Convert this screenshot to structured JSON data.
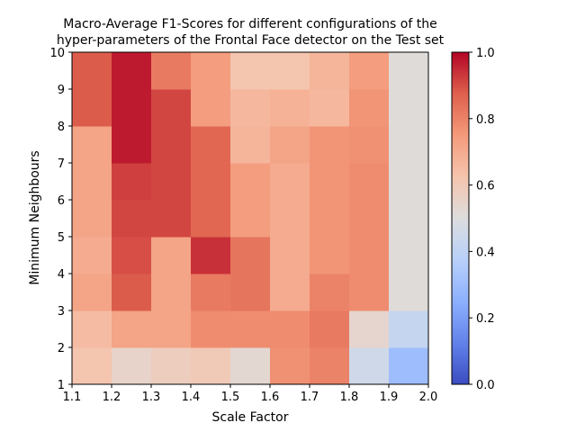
{
  "chart_data": {
    "type": "heatmap",
    "title": [
      "Macro-Average F1-Scores for different configurations of the",
      "hyper-parameters of the Frontal Face detector on the Test set"
    ],
    "xlabel": "Scale Factor",
    "ylabel": "Minimum Neighbours",
    "x_ticks": [
      "1.1",
      "1.2",
      "1.3",
      "1.4",
      "1.5",
      "1.6",
      "1.7",
      "1.8",
      "1.9",
      "2.0"
    ],
    "y_ticks": [
      "1",
      "2",
      "3",
      "4",
      "5",
      "6",
      "7",
      "8",
      "9",
      "10"
    ],
    "xlim": [
      1.1,
      2.0
    ],
    "ylim": [
      1,
      10
    ],
    "colormap": "coolwarm",
    "colorbar": {
      "min": 0.0,
      "max": 1.0,
      "ticks": [
        "0.0",
        "0.2",
        "0.4",
        "0.6",
        "0.8",
        "1.0"
      ]
    },
    "x_bins": [
      [
        1.1,
        1.2
      ],
      [
        1.2,
        1.3
      ],
      [
        1.3,
        1.4
      ],
      [
        1.4,
        1.5
      ],
      [
        1.5,
        1.6
      ],
      [
        1.6,
        1.7
      ],
      [
        1.7,
        1.8
      ],
      [
        1.8,
        1.9
      ],
      [
        1.9,
        2.0
      ]
    ],
    "y_bins": [
      [
        1,
        2
      ],
      [
        2,
        3
      ],
      [
        3,
        4
      ],
      [
        4,
        5
      ],
      [
        5,
        6
      ],
      [
        6,
        7
      ],
      [
        7,
        8
      ],
      [
        8,
        9
      ],
      [
        9,
        10
      ]
    ],
    "values": [
      [
        0.62,
        0.55,
        0.58,
        0.6,
        0.53,
        0.77,
        0.8,
        0.45,
        0.3
      ],
      [
        0.65,
        0.72,
        0.72,
        0.78,
        0.78,
        0.78,
        0.82,
        0.54,
        0.42
      ],
      [
        0.72,
        0.88,
        0.72,
        0.82,
        0.83,
        0.7,
        0.8,
        0.78,
        0.51
      ],
      [
        0.7,
        0.9,
        0.72,
        0.94,
        0.83,
        0.7,
        0.76,
        0.78,
        0.51
      ],
      [
        0.72,
        0.91,
        0.91,
        0.86,
        0.74,
        0.7,
        0.76,
        0.78,
        0.51
      ],
      [
        0.72,
        0.92,
        0.91,
        0.86,
        0.74,
        0.7,
        0.76,
        0.78,
        0.51
      ],
      [
        0.72,
        0.97,
        0.91,
        0.86,
        0.67,
        0.72,
        0.76,
        0.77,
        0.51
      ],
      [
        0.88,
        0.97,
        0.91,
        0.74,
        0.66,
        0.68,
        0.66,
        0.76,
        0.51
      ],
      [
        0.88,
        0.97,
        0.82,
        0.74,
        0.62,
        0.62,
        0.67,
        0.74,
        0.51
      ]
    ]
  }
}
